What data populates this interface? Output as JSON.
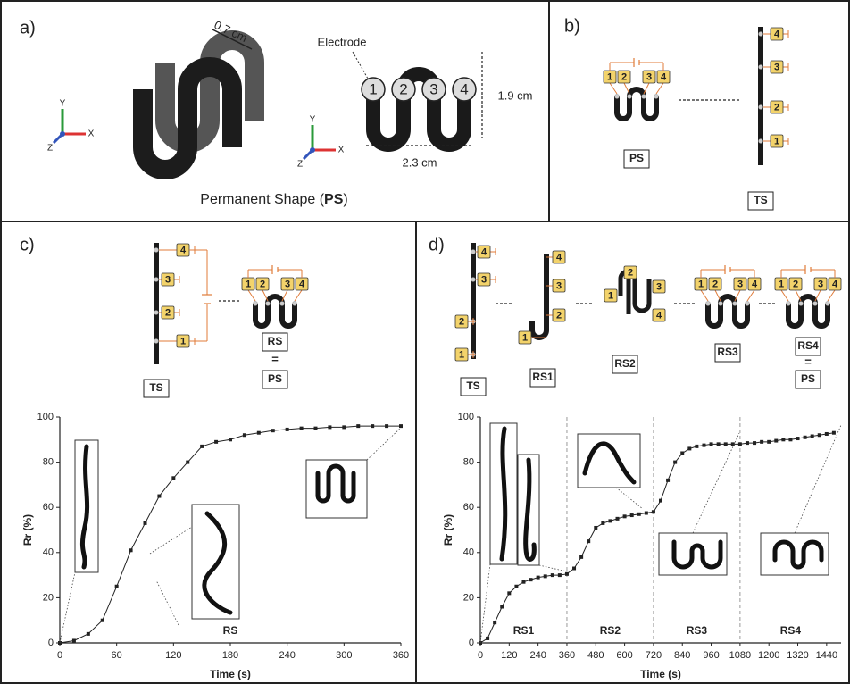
{
  "panels": {
    "a": {
      "label": "a)",
      "width_dim": "0.7 cm",
      "electrode": "Electrode",
      "height_dim": "1.9 cm",
      "length_dim": "2.3 cm",
      "caption_pre": "Permanent Shape (",
      "caption_bold": "PS",
      "caption_post": ")"
    },
    "b": {
      "label": "b)",
      "ps": "PS",
      "ts": "TS"
    },
    "c": {
      "label": "c)",
      "ts": "TS",
      "rs": "RS",
      "eq": "=",
      "ps": "PS"
    },
    "d": {
      "label": "d)",
      "ts": "TS",
      "rs1": "RS1",
      "rs2": "RS2",
      "rs3": "RS3",
      "rs4": "RS4",
      "eq": "=",
      "ps": "PS"
    }
  },
  "electrode_labels": [
    "1",
    "2",
    "3",
    "4"
  ],
  "triad": [
    "X",
    "Y",
    "Z"
  ],
  "chart_data": [
    {
      "type": "line",
      "xlabel": "Time (s)",
      "ylabel": "Rr (%)",
      "color": "#222222",
      "x": [
        0,
        15,
        30,
        45,
        60,
        75,
        90,
        105,
        120,
        135,
        150,
        165,
        180,
        195,
        210,
        225,
        240,
        255,
        270,
        285,
        300,
        315,
        330,
        345,
        360
      ],
      "values": [
        0,
        1,
        4,
        10,
        25,
        41,
        53,
        65,
        73,
        80,
        87,
        89,
        90,
        92,
        93,
        94,
        94.5,
        95,
        95,
        95.5,
        95.5,
        96,
        96,
        96,
        96
      ],
      "xlim": [
        0,
        360
      ],
      "xticks": [
        0,
        60,
        120,
        180,
        240,
        300,
        360
      ],
      "ylim": [
        0,
        100
      ],
      "yticks": [
        0,
        20,
        40,
        60,
        80,
        100
      ],
      "regions": [
        {
          "label": "RS",
          "start": 0,
          "end": 360
        }
      ]
    },
    {
      "type": "line",
      "xlabel": "Time (s)",
      "ylabel": "Rr (%)",
      "color": "#222222",
      "x": [
        0,
        30,
        60,
        90,
        120,
        150,
        180,
        210,
        240,
        270,
        300,
        330,
        360,
        390,
        420,
        450,
        480,
        510,
        540,
        570,
        600,
        630,
        660,
        690,
        720,
        750,
        780,
        810,
        840,
        870,
        900,
        930,
        960,
        990,
        1020,
        1050,
        1080,
        1110,
        1140,
        1170,
        1200,
        1230,
        1260,
        1290,
        1320,
        1350,
        1380,
        1410,
        1440,
        1470
      ],
      "values": [
        0,
        2,
        9,
        16,
        22,
        25,
        27,
        28,
        29,
        29.5,
        30,
        30,
        30.5,
        33,
        38,
        45,
        51,
        53,
        54,
        55,
        56,
        56.5,
        57,
        57.5,
        58,
        63,
        72,
        80,
        84,
        86,
        87,
        87.5,
        88,
        88,
        88,
        88,
        88,
        88.5,
        88.5,
        89,
        89,
        89.5,
        90,
        90,
        90.5,
        91,
        91.5,
        92,
        92.5,
        93
      ],
      "xlim": [
        0,
        1500
      ],
      "xticks": [
        0,
        120,
        240,
        360,
        480,
        600,
        720,
        840,
        960,
        1080,
        1200,
        1320,
        1440
      ],
      "ylim": [
        0,
        100
      ],
      "yticks": [
        0,
        20,
        40,
        60,
        80,
        100
      ],
      "regions": [
        {
          "label": "RS1",
          "start": 0,
          "end": 360
        },
        {
          "label": "RS2",
          "start": 360,
          "end": 720
        },
        {
          "label": "RS3",
          "start": 720,
          "end": 1080
        },
        {
          "label": "RS4",
          "start": 1080,
          "end": 1500
        }
      ]
    }
  ]
}
